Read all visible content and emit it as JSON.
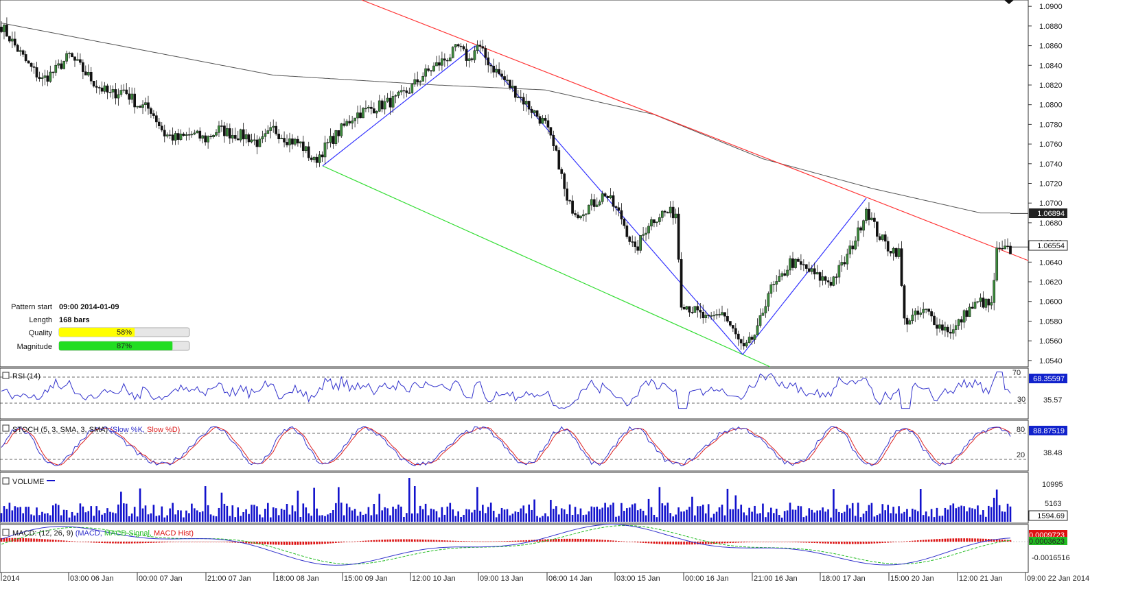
{
  "chart_data": {
    "type": "candlestick",
    "instrument_hint": "",
    "price_axis": {
      "ticks": [
        "1.0900",
        "1.0880",
        "1.0860",
        "1.0840",
        "1.0820",
        "1.0800",
        "1.0780",
        "1.0760",
        "1.0740",
        "1.0720",
        "1.0700",
        "1.0680",
        "1.0660",
        "1.0640",
        "1.0620",
        "1.0600",
        "1.0580",
        "1.0560",
        "1.0540"
      ],
      "range": [
        1.0535,
        1.0905
      ],
      "current_price": "1.06554",
      "ma_value": "1.06894"
    },
    "time_axis": {
      "labels": [
        "2014",
        "03:00 06 Jan",
        "00:00 07 Jan",
        "21:00 07 Jan",
        "18:00 08 Jan",
        "15:00 09 Jan",
        "12:00 10 Jan",
        "09:00 13 Jan",
        "06:00 14 Jan",
        "03:00 15 Jan",
        "00:00 16 Jan",
        "21:00 16 Jan",
        "18:00 17 Jan",
        "15:00 20 Jan",
        "12:00 21 Jan",
        "09:00 22 Jan 2014"
      ]
    },
    "pattern_info": {
      "pattern_start_label": "Pattern start",
      "pattern_start_value": "09:00 2014-01-09",
      "length_label": "Length",
      "length_value": "168 bars",
      "quality_label": "Quality",
      "quality_value": "58%",
      "quality_fraction": 0.58,
      "magnitude_label": "Magnitude",
      "magnitude_value": "87%",
      "magnitude_fraction": 0.87
    },
    "trendlines": {
      "resistance_color": "#ff3333",
      "support_color": "#33dd33",
      "zigzag_color": "#3333ff",
      "ma_color": "#555555"
    },
    "close_anchors": [
      [
        0,
        1.088
      ],
      [
        5,
        1.086
      ],
      [
        10,
        1.084
      ],
      [
        15,
        1.0825
      ],
      [
        20,
        1.0835
      ],
      [
        25,
        1.085
      ],
      [
        30,
        1.0835
      ],
      [
        35,
        1.082
      ],
      [
        40,
        1.081
      ],
      [
        45,
        1.0815
      ],
      [
        50,
        1.08
      ],
      [
        55,
        1.0795
      ],
      [
        60,
        1.077
      ],
      [
        65,
        1.0765
      ],
      [
        70,
        1.077
      ],
      [
        75,
        1.0765
      ],
      [
        80,
        1.0775
      ],
      [
        85,
        1.077
      ],
      [
        90,
        1.0768
      ],
      [
        95,
        1.076
      ],
      [
        100,
        1.0775
      ],
      [
        105,
        1.0765
      ],
      [
        110,
        1.076
      ],
      [
        115,
        1.0742
      ],
      [
        120,
        1.076
      ],
      [
        125,
        1.0775
      ],
      [
        130,
        1.079
      ],
      [
        135,
        1.0795
      ],
      [
        140,
        1.08
      ],
      [
        145,
        1.0805
      ],
      [
        150,
        1.0815
      ],
      [
        155,
        1.083
      ],
      [
        160,
        1.084
      ],
      [
        165,
        1.085
      ],
      [
        168,
        1.0858
      ],
      [
        172,
        1.0845
      ],
      [
        175,
        1.086
      ],
      [
        180,
        1.084
      ],
      [
        185,
        1.0825
      ],
      [
        190,
        1.081
      ],
      [
        195,
        1.0795
      ],
      [
        200,
        1.078
      ],
      [
        205,
        1.074
      ],
      [
        208,
        1.07
      ],
      [
        212,
        1.069
      ],
      [
        218,
        1.07
      ],
      [
        222,
        1.071
      ],
      [
        228,
        1.0685
      ],
      [
        233,
        1.065
      ],
      [
        238,
        1.068
      ],
      [
        243,
        1.069
      ],
      [
        248,
        1.069
      ],
      [
        250,
        1.06
      ],
      [
        255,
        1.059
      ],
      [
        260,
        1.058
      ],
      [
        265,
        1.059
      ],
      [
        270,
        1.0565
      ],
      [
        273,
        1.055
      ],
      [
        278,
        1.057
      ],
      [
        282,
        1.061
      ],
      [
        286,
        1.062
      ],
      [
        290,
        1.064
      ],
      [
        295,
        1.0635
      ],
      [
        300,
        1.0625
      ],
      [
        305,
        1.062
      ],
      [
        310,
        1.064
      ],
      [
        315,
        1.067
      ],
      [
        318,
        1.0695
      ],
      [
        322,
        1.067
      ],
      [
        326,
        1.0655
      ],
      [
        330,
        1.065
      ],
      [
        332,
        1.058
      ],
      [
        336,
        1.0585
      ],
      [
        340,
        1.059
      ],
      [
        345,
        1.0575
      ],
      [
        350,
        1.057
      ],
      [
        355,
        1.059
      ],
      [
        360,
        1.06
      ],
      [
        364,
        1.0595
      ],
      [
        366,
        1.065
      ],
      [
        370,
        1.0652
      ]
    ],
    "bar_count": 372,
    "ma_anchors": [
      [
        0,
        1.0883
      ],
      [
        100,
        1.083
      ],
      [
        160,
        1.082
      ],
      [
        200,
        1.0815
      ],
      [
        240,
        1.079
      ],
      [
        280,
        1.0745
      ],
      [
        320,
        1.0715
      ],
      [
        360,
        1.069
      ],
      [
        372,
        1.069
      ]
    ],
    "rsi": {
      "label": "RSI (14)",
      "current": "68.35597",
      "mid_value": "35.57",
      "level_high": "70",
      "level_low": "30",
      "color": "#3333cc"
    },
    "stoch": {
      "label": "STOCH (5, 3, SMA, 3, SMA)",
      "slow_k": "(Slow %K,",
      "slow_d": "Slow %D)",
      "current": "88.87519",
      "mid_value": "38.48",
      "level_high": "80",
      "level_low": "20",
      "k_color": "#3333cc",
      "d_color": "#dd2222"
    },
    "volume": {
      "label": "VOLUME",
      "current": "1594.69",
      "ticks": [
        "10995",
        "5163"
      ],
      "color": "#1111cc"
    },
    "macd": {
      "label_prefix": "MACD: (12, 26, 9)",
      "macd_label": "(MACD,",
      "signal_label": "MACD Signal,",
      "hist_label": "MACD Hist)",
      "current_hist": "0.0009723",
      "current_signal": "0.0003623",
      "tick_low": "-0.0016516",
      "macd_color": "#3333cc",
      "signal_color": "#22bb22",
      "hist_color": "#dd1111"
    }
  }
}
